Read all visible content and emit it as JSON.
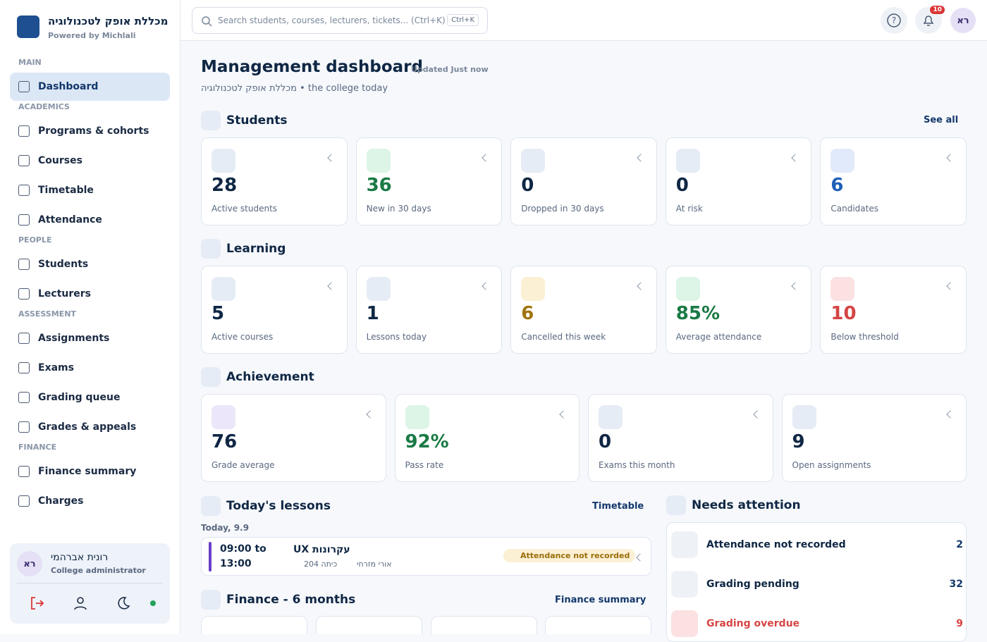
{
  "sidebar": {
    "brand": "מכללת אופק לטכנולוגיה",
    "powered": "Powered by Michlali",
    "sections": [
      {
        "label": "MAIN",
        "items": [
          "Dashboard"
        ]
      },
      {
        "label": "ACADEMICS",
        "items": [
          "Programs & cohorts",
          "Courses",
          "Timetable",
          "Attendance"
        ]
      },
      {
        "label": "PEOPLE",
        "items": [
          "Students",
          "Lecturers"
        ]
      },
      {
        "label": "ASSESSMENT",
        "items": [
          "Assignments",
          "Exams",
          "Grading queue",
          "Grades & appeals"
        ]
      },
      {
        "label": "FINANCE",
        "items": [
          "Finance summary",
          "Charges"
        ]
      }
    ],
    "user": {
      "initials": "רא",
      "name": "רונית אברהמי",
      "role": "College administrator"
    }
  },
  "topbar": {
    "search": "Search students, courses, lecturers, tickets... (Ctrl+K)",
    "shortcut": "Ctrl+K",
    "notifications": "10",
    "avatar": "רא"
  },
  "header": {
    "title": "Management dashboard",
    "updated": "Updated Just now",
    "subtitle": "מכללת אופק לטכנולוגיה • the college today"
  },
  "groups": [
    {
      "title": "Students",
      "link": "See all",
      "cards": [
        {
          "value": "28",
          "label": "Active students"
        },
        {
          "value": "36",
          "label": "New in 30 days"
        },
        {
          "value": "0",
          "label": "Dropped in 30 days"
        },
        {
          "value": "0",
          "label": "At risk"
        },
        {
          "value": "6",
          "label": "Candidates"
        }
      ]
    },
    {
      "title": "Learning",
      "cards": [
        {
          "value": "5",
          "label": "Active courses"
        },
        {
          "value": "1",
          "label": "Lessons today"
        },
        {
          "value": "6",
          "label": "Cancelled this week"
        },
        {
          "value": "85%",
          "label": "Average attendance"
        },
        {
          "value": "10",
          "label": "Below threshold"
        }
      ]
    },
    {
      "title": "Achievement",
      "cards": [
        {
          "value": "76",
          "label": "Grade average"
        },
        {
          "value": "92%",
          "label": "Pass rate"
        },
        {
          "value": "0",
          "label": "Exams this month"
        },
        {
          "value": "9",
          "label": "Open assignments"
        }
      ]
    }
  ],
  "lessons": {
    "title": "Today's lessons",
    "link": "Timetable",
    "date": "Today, 9.9",
    "items": [
      {
        "start": "09:00 to",
        "end": "13:00",
        "course": "עקרונות UX",
        "room": "כיתה 204",
        "lecturer": "אורי מזרחי",
        "status": "Attendance not recorded"
      }
    ]
  },
  "attention": {
    "title": "Needs attention",
    "items": [
      {
        "label": "Attendance not recorded",
        "count": "2"
      },
      {
        "label": "Grading pending",
        "count": "32"
      },
      {
        "label": "Grading overdue",
        "count": "9"
      }
    ]
  },
  "finance": {
    "title": "Finance - 6 months",
    "link": "Finance summary"
  }
}
